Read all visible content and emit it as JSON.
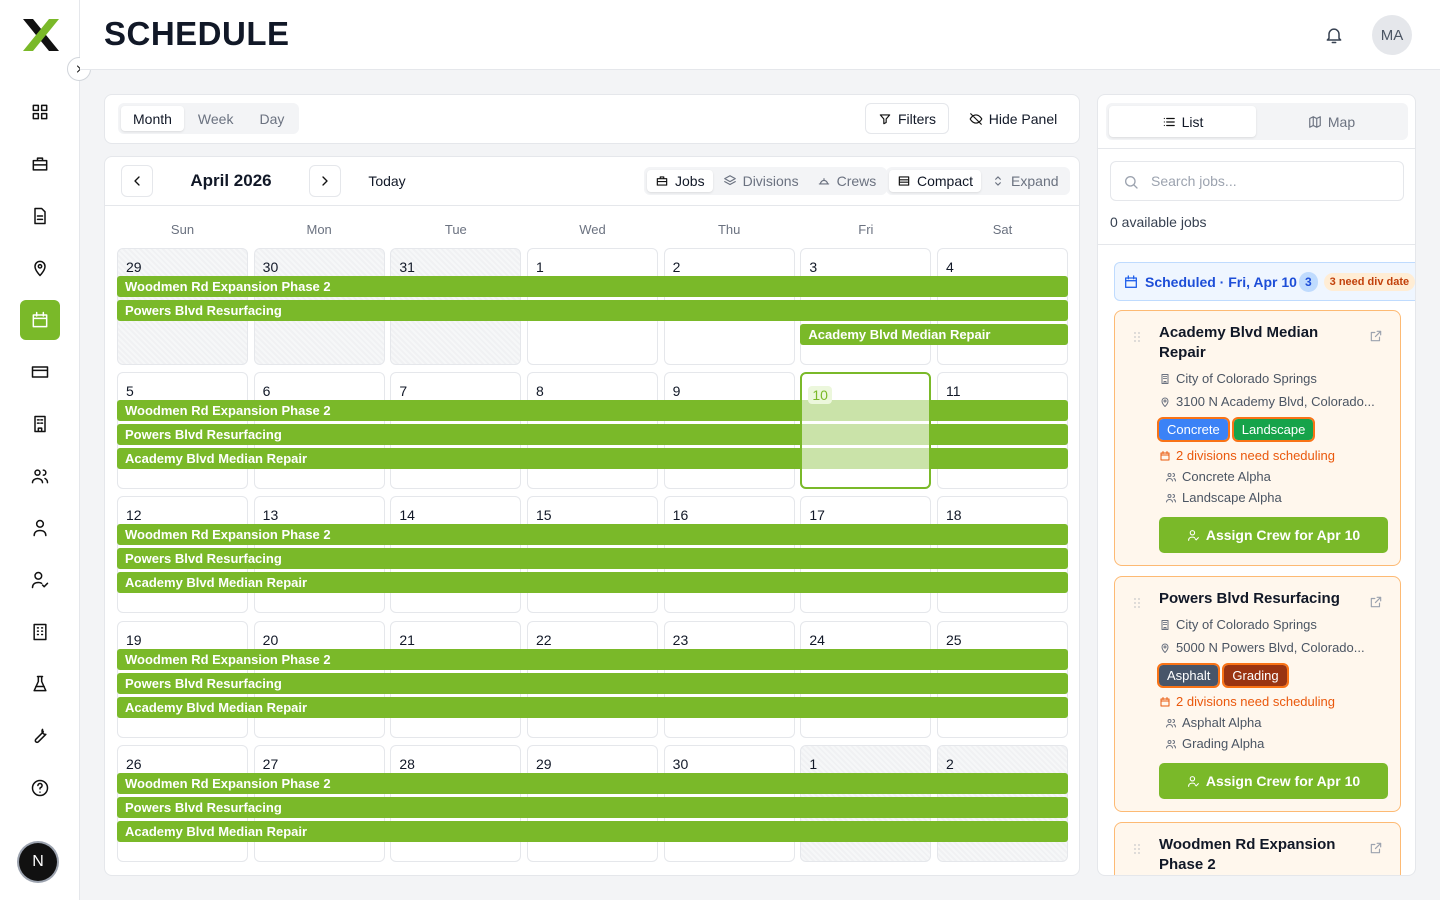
{
  "header": {
    "title": "SCHEDULE",
    "avatar": "MA"
  },
  "sidebar": {
    "badge": "N"
  },
  "toolbar": {
    "views": [
      "Month",
      "Week",
      "Day"
    ],
    "filters": "Filters",
    "hide_panel": "Hide Panel"
  },
  "calendar": {
    "month": "April 2026",
    "today": "Today",
    "modes": [
      "Jobs",
      "Divisions",
      "Crews"
    ],
    "density": [
      "Compact",
      "Expand"
    ],
    "weekdays": [
      "Sun",
      "Mon",
      "Tue",
      "Wed",
      "Thu",
      "Fri",
      "Sat"
    ],
    "bar_color": "#7ab929",
    "weeks": [
      {
        "days": [
          {
            "day": 29,
            "outside": true
          },
          {
            "day": 30,
            "outside": true
          },
          {
            "day": 31,
            "outside": true
          },
          {
            "day": 1
          },
          {
            "day": 2
          },
          {
            "day": 3
          },
          {
            "day": 4
          }
        ],
        "bars": [
          {
            "label": "Woodmen Rd Expansion Phase 2",
            "from": 29,
            "to": 4
          },
          {
            "label": "Powers Blvd Resurfacing",
            "from": 29,
            "to": 4
          },
          {
            "label": "Academy Blvd Median Repair",
            "from": 3,
            "to": 4
          }
        ]
      },
      {
        "days": [
          {
            "day": 5
          },
          {
            "day": 6
          },
          {
            "day": 7
          },
          {
            "day": 8
          },
          {
            "day": 9
          },
          {
            "day": 10,
            "today": true
          },
          {
            "day": 11
          }
        ],
        "bars": [
          {
            "label": "Woodmen Rd Expansion Phase 2",
            "from": 5,
            "to": 11
          },
          {
            "label": "Powers Blvd Resurfacing",
            "from": 5,
            "to": 11
          },
          {
            "label": "Academy Blvd Median Repair",
            "from": 5,
            "to": 11
          }
        ]
      },
      {
        "days": [
          {
            "day": 12
          },
          {
            "day": 13
          },
          {
            "day": 14
          },
          {
            "day": 15
          },
          {
            "day": 16
          },
          {
            "day": 17
          },
          {
            "day": 18
          }
        ],
        "bars": [
          {
            "label": "Woodmen Rd Expansion Phase 2",
            "from": 12,
            "to": 18
          },
          {
            "label": "Powers Blvd Resurfacing",
            "from": 12,
            "to": 18
          },
          {
            "label": "Academy Blvd Median Repair",
            "from": 12,
            "to": 18
          }
        ]
      },
      {
        "days": [
          {
            "day": 19
          },
          {
            "day": 20
          },
          {
            "day": 21
          },
          {
            "day": 22
          },
          {
            "day": 23
          },
          {
            "day": 24
          },
          {
            "day": 25
          }
        ],
        "bars": [
          {
            "label": "Woodmen Rd Expansion Phase 2",
            "from": 19,
            "to": 25
          },
          {
            "label": "Powers Blvd Resurfacing",
            "from": 19,
            "to": 25
          },
          {
            "label": "Academy Blvd Median Repair",
            "from": 19,
            "to": 25
          }
        ]
      },
      {
        "days": [
          {
            "day": 26
          },
          {
            "day": 27
          },
          {
            "day": 28
          },
          {
            "day": 29
          },
          {
            "day": 30
          },
          {
            "day": 1,
            "outside": true
          },
          {
            "day": 2,
            "outside": true
          }
        ],
        "bars": [
          {
            "label": "Woodmen Rd Expansion Phase 2",
            "from": 26,
            "to": 2
          },
          {
            "label": "Powers Blvd Resurfacing",
            "from": 26,
            "to": 2
          },
          {
            "label": "Academy Blvd Median Repair",
            "from": 26,
            "to": 2
          }
        ]
      }
    ]
  },
  "panel": {
    "tabs": [
      "List",
      "Map"
    ],
    "search_placeholder": "Search jobs...",
    "available": "0 available jobs",
    "scheduled": "Scheduled · Fri, Apr 10",
    "scheduled_count": "3",
    "warning": "3 need div date",
    "jobs": [
      {
        "title": "Academy Blvd Median Repair",
        "client": "City of Colorado Springs",
        "address": "3100 N Academy Blvd, Colorado...",
        "tags": [
          {
            "label": "Concrete",
            "color": "#3b82f6"
          },
          {
            "label": "Landscape",
            "color": "#16a34a"
          }
        ],
        "warning": "2 divisions need scheduling",
        "crews": [
          "Concrete Alpha",
          "Landscape Alpha"
        ],
        "button": "Assign Crew for Apr 10"
      },
      {
        "title": "Powers Blvd Resurfacing",
        "client": "City of Colorado Springs",
        "address": "5000 N Powers Blvd, Colorado...",
        "tags": [
          {
            "label": "Asphalt",
            "color": "#475569"
          },
          {
            "label": "Grading",
            "color": "#9a3412"
          }
        ],
        "warning": "2 divisions need scheduling",
        "crews": [
          "Asphalt Alpha",
          "Grading Alpha"
        ],
        "button": "Assign Crew for Apr 10"
      },
      {
        "title": "Woodmen Rd Expansion Phase 2"
      }
    ]
  }
}
